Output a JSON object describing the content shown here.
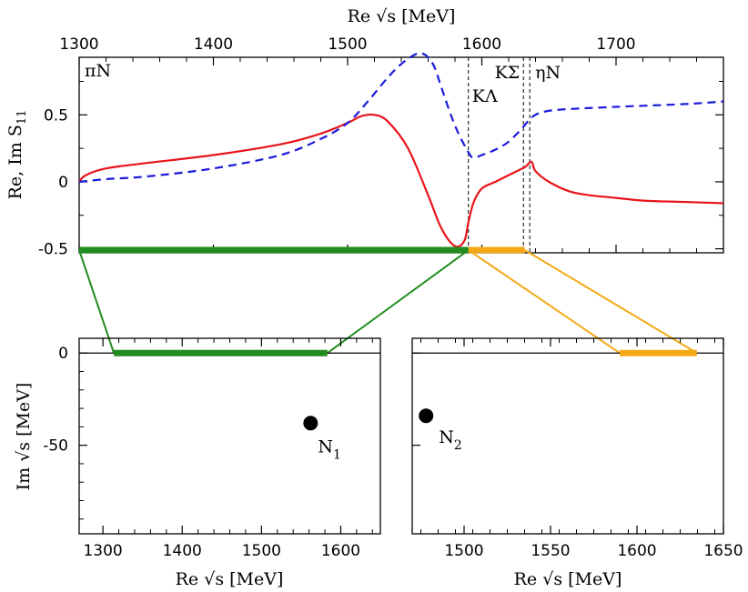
{
  "chart_data": [
    {
      "type": "line",
      "panel": "top",
      "title": "",
      "xlabel_top": "Re √s [MeV]",
      "ylabel": "Re, Im S",
      "ylabel_sub": "11",
      "xlim": [
        1300,
        1780
      ],
      "ylim": [
        -0.53,
        0.93
      ],
      "xticks": [
        "1300",
        "1400",
        "1500",
        "1600",
        "1700"
      ],
      "xtick_values": [
        1300,
        1400,
        1500,
        1600,
        1700
      ],
      "yticks": [
        "0.5",
        "0",
        "-0.5"
      ],
      "ytick_values": [
        0.5,
        0,
        -0.5
      ],
      "series": [
        {
          "style": "solid",
          "color": "#e8141a",
          "x": [
            1300,
            1305,
            1320,
            1350,
            1400,
            1450,
            1480,
            1500,
            1510,
            1520,
            1530,
            1545,
            1560,
            1570,
            1580,
            1587,
            1590,
            1594,
            1600,
            1610,
            1620,
            1632,
            1637,
            1640,
            1650,
            1665,
            1680,
            1700,
            1720,
            1750,
            1780
          ],
          "y": [
            0.0,
            0.05,
            0.1,
            0.14,
            0.2,
            0.28,
            0.36,
            0.44,
            0.49,
            0.5,
            0.45,
            0.25,
            -0.1,
            -0.35,
            -0.48,
            -0.44,
            -0.3,
            -0.15,
            -0.05,
            0.0,
            0.05,
            0.11,
            0.15,
            0.08,
            0.0,
            -0.07,
            -0.1,
            -0.12,
            -0.14,
            -0.15,
            -0.16
          ]
        },
        {
          "style": "dashed",
          "color": "#1a1adb",
          "x": [
            1300,
            1320,
            1350,
            1400,
            1450,
            1480,
            1500,
            1515,
            1530,
            1540,
            1550,
            1555,
            1560,
            1565,
            1570,
            1580,
            1590,
            1594,
            1600,
            1610,
            1620,
            1630,
            1637,
            1645,
            1660,
            1700,
            1750,
            1780
          ],
          "y": [
            0.0,
            0.02,
            0.04,
            0.1,
            0.2,
            0.32,
            0.44,
            0.6,
            0.78,
            0.88,
            0.95,
            0.96,
            0.93,
            0.85,
            0.7,
            0.42,
            0.22,
            0.18,
            0.2,
            0.24,
            0.3,
            0.4,
            0.48,
            0.52,
            0.54,
            0.56,
            0.58,
            0.6
          ]
        }
      ],
      "thresholds": [
        {
          "label": "KΛ",
          "x": 1590
        },
        {
          "label": "KΣ",
          "x": 1631
        },
        {
          "label": "ηN",
          "x": 1633
        }
      ],
      "corner_label": "πN",
      "bands": [
        {
          "color": "#218c1e",
          "x": [
            1300,
            1590
          ]
        },
        {
          "color": "#f5a917",
          "x": [
            1590,
            1632
          ]
        }
      ]
    },
    {
      "type": "scatter",
      "panel": "bottom-left",
      "xlabel": "Re √s [MeV]",
      "ylabel": "Im √s [MeV]",
      "xlim": [
        1270,
        1650
      ],
      "ylim": [
        -98,
        8
      ],
      "xticks": [
        "1300",
        "1400",
        "1500",
        "1600"
      ],
      "xtick_values": [
        1300,
        1400,
        1500,
        1600
      ],
      "yticks": [
        "0",
        "-50"
      ],
      "ytick_values": [
        0,
        -50
      ],
      "band": {
        "color": "#218c1e",
        "x": [
          1300,
          1590
        ]
      },
      "points": [
        {
          "label": "N",
          "sub": "1",
          "x": 1562,
          "y": -38
        }
      ]
    },
    {
      "type": "scatter",
      "panel": "bottom-right",
      "xlabel": "Re √s [MeV]",
      "xlim": [
        1470,
        1650
      ],
      "ylim": [
        -98,
        8
      ],
      "xticks": [
        "1500",
        "1550",
        "1600",
        "1650"
      ],
      "xtick_values": [
        1500,
        1550,
        1600,
        1650
      ],
      "band": {
        "color": "#f5a917",
        "x": [
          1590,
          1632
        ]
      },
      "points": [
        {
          "label": "N",
          "sub": "2",
          "x": 1478,
          "y": -34
        }
      ]
    }
  ]
}
